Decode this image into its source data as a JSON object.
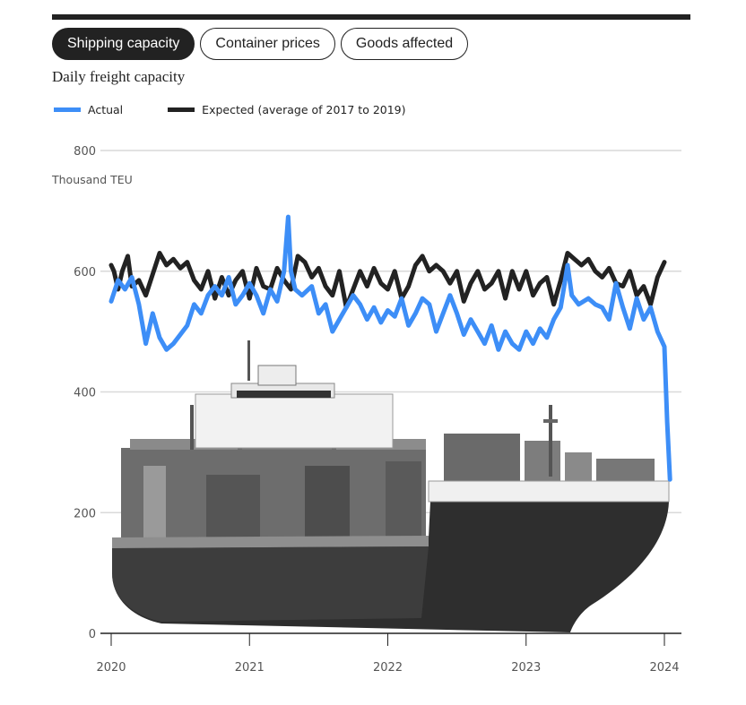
{
  "tabs": [
    {
      "label": "Shipping capacity",
      "active": true
    },
    {
      "label": "Container prices",
      "active": false
    },
    {
      "label": "Goods affected",
      "active": false
    }
  ],
  "subtitle": "Daily freight capacity",
  "colors": {
    "actual": "#3d8ef7",
    "expected": "#222222",
    "grid": "#d9d9d9",
    "hull": "#2e2e2e"
  },
  "chart_data": {
    "type": "line",
    "title": "Daily freight capacity",
    "ylabel": "Thousand TEU",
    "ylim": [
      0,
      800
    ],
    "y_ticks": [
      0,
      200,
      400,
      600,
      800
    ],
    "x_ticks": [
      "2020",
      "2021",
      "2022",
      "2023",
      "2024"
    ],
    "xlim": [
      2020.0,
      2024.13
    ],
    "legend": "top-left",
    "series": [
      {
        "name": "Actual",
        "color": "#3d8ef7",
        "x": [
          2020.0,
          2020.05,
          2020.1,
          2020.15,
          2020.2,
          2020.25,
          2020.3,
          2020.35,
          2020.4,
          2020.45,
          2020.5,
          2020.55,
          2020.6,
          2020.65,
          2020.7,
          2020.75,
          2020.8,
          2020.85,
          2020.9,
          2020.95,
          2021.0,
          2021.05,
          2021.1,
          2021.15,
          2021.2,
          2021.25,
          2021.28,
          2021.3,
          2021.33,
          2021.38,
          2021.45,
          2021.5,
          2021.55,
          2021.6,
          2021.65,
          2021.7,
          2021.75,
          2021.8,
          2021.85,
          2021.9,
          2021.95,
          2022.0,
          2022.05,
          2022.1,
          2022.15,
          2022.2,
          2022.25,
          2022.3,
          2022.35,
          2022.4,
          2022.45,
          2022.5,
          2022.55,
          2022.6,
          2022.65,
          2022.7,
          2022.75,
          2022.8,
          2022.85,
          2022.9,
          2022.95,
          2023.0,
          2023.05,
          2023.1,
          2023.15,
          2023.2,
          2023.25,
          2023.3,
          2023.33,
          2023.38,
          2023.45,
          2023.5,
          2023.55,
          2023.6,
          2023.65,
          2023.7,
          2023.75,
          2023.8,
          2023.85,
          2023.9,
          2023.95,
          2024.0,
          2024.02,
          2024.04
        ],
        "values": [
          550,
          585,
          570,
          590,
          545,
          480,
          530,
          490,
          470,
          480,
          495,
          510,
          545,
          530,
          560,
          575,
          560,
          590,
          545,
          560,
          580,
          560,
          530,
          570,
          550,
          600,
          690,
          600,
          570,
          560,
          575,
          530,
          545,
          500,
          520,
          540,
          560,
          545,
          520,
          540,
          515,
          535,
          525,
          555,
          510,
          530,
          555,
          545,
          500,
          530,
          560,
          530,
          495,
          520,
          500,
          480,
          510,
          470,
          500,
          480,
          470,
          500,
          480,
          505,
          490,
          520,
          540,
          610,
          560,
          545,
          555,
          545,
          540,
          520,
          580,
          540,
          505,
          555,
          520,
          540,
          500,
          475,
          350,
          255
        ]
      },
      {
        "name": "Expected (average of 2017 to 2019)",
        "color": "#222222",
        "x": [
          2020.0,
          2020.02,
          2020.05,
          2020.08,
          2020.12,
          2020.15,
          2020.2,
          2020.25,
          2020.3,
          2020.35,
          2020.4,
          2020.45,
          2020.5,
          2020.55,
          2020.6,
          2020.65,
          2020.7,
          2020.75,
          2020.8,
          2020.85,
          2020.9,
          2020.95,
          2021.0,
          2021.05,
          2021.1,
          2021.15,
          2021.2,
          2021.25,
          2021.3,
          2021.35,
          2021.4,
          2021.45,
          2021.5,
          2021.55,
          2021.6,
          2021.65,
          2021.7,
          2021.75,
          2021.8,
          2021.85,
          2021.9,
          2021.95,
          2022.0,
          2022.05,
          2022.1,
          2022.15,
          2022.2,
          2022.25,
          2022.3,
          2022.35,
          2022.4,
          2022.45,
          2022.5,
          2022.55,
          2022.6,
          2022.65,
          2022.7,
          2022.75,
          2022.8,
          2022.85,
          2022.9,
          2022.95,
          2023.0,
          2023.05,
          2023.1,
          2023.15,
          2023.2,
          2023.25,
          2023.3,
          2023.35,
          2023.4,
          2023.45,
          2023.5,
          2023.55,
          2023.6,
          2023.65,
          2023.7,
          2023.75,
          2023.8,
          2023.85,
          2023.9,
          2023.95,
          2024.0
        ],
        "values": [
          610,
          600,
          570,
          600,
          625,
          575,
          585,
          560,
          595,
          630,
          610,
          620,
          605,
          615,
          585,
          570,
          600,
          555,
          590,
          560,
          585,
          600,
          555,
          605,
          575,
          570,
          605,
          585,
          570,
          625,
          615,
          590,
          605,
          575,
          560,
          600,
          540,
          570,
          600,
          575,
          605,
          580,
          570,
          600,
          555,
          575,
          610,
          625,
          600,
          610,
          600,
          580,
          600,
          550,
          580,
          600,
          570,
          580,
          600,
          555,
          600,
          570,
          600,
          560,
          580,
          590,
          545,
          585,
          630,
          620,
          610,
          620,
          600,
          590,
          605,
          580,
          575,
          600,
          560,
          575,
          545,
          590,
          615
        ]
      }
    ]
  }
}
